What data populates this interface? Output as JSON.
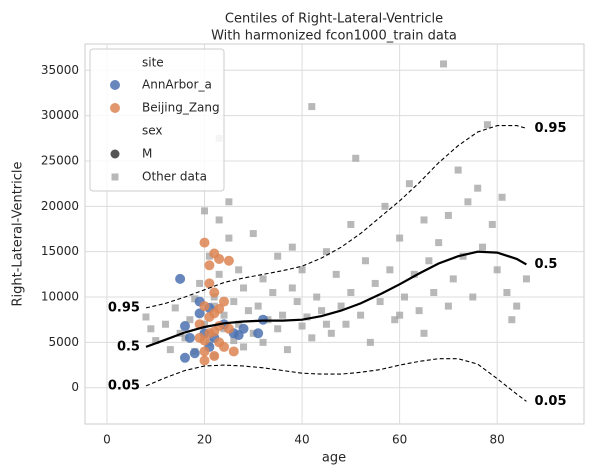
{
  "chart_data": {
    "type": "scatter",
    "title": "Centiles of Right-Lateral-Ventricle",
    "subtitle": "With harmonized fcon1000_train data",
    "x_label": "age",
    "y_label": "Right-Lateral-Ventricle",
    "xlim": [
      -4.5,
      97.8
    ],
    "ylim": [
      -4000,
      37900
    ],
    "xticks": [
      0,
      20,
      40,
      60,
      80
    ],
    "yticks": [
      0,
      5000,
      10000,
      15000,
      20000,
      25000,
      30000,
      35000
    ],
    "grid": true,
    "legend": {
      "position": "upper left",
      "site_title": "site",
      "sex_title": "sex",
      "sex_entries": [
        {
          "name": "M",
          "color": "#555555"
        }
      ]
    },
    "series": [
      {
        "name": "AnnArbor_a",
        "color": "#4c72b0",
        "marker": "circle",
        "x": [
          15,
          16,
          16,
          17,
          18,
          19,
          19,
          20,
          21,
          21,
          22,
          26,
          28,
          31,
          32,
          24,
          27
        ],
        "values": [
          12000,
          6800,
          3300,
          5500,
          3800,
          9500,
          8200,
          6000,
          4500,
          8800,
          5500,
          6000,
          6500,
          6000,
          7500,
          7000,
          5800
        ]
      },
      {
        "name": "Beijing_Zang",
        "color": "#dd8452",
        "marker": "circle",
        "x": [
          20,
          21,
          22,
          23,
          25,
          19,
          20,
          21,
          21,
          22,
          23,
          20,
          22,
          24,
          25,
          20,
          21,
          22,
          23,
          26,
          19,
          24,
          22,
          20,
          23
        ],
        "values": [
          16000,
          13500,
          14800,
          14200,
          14000,
          7000,
          9000,
          11500,
          6000,
          8200,
          5000,
          4000,
          3500,
          9500,
          6500,
          3000,
          7800,
          10500,
          6800,
          4000,
          5500,
          4500,
          6200,
          5200,
          8700
        ]
      },
      {
        "name": "Other data",
        "color": "#9a9a9a",
        "marker": "square",
        "x": [
          8,
          9,
          10,
          12,
          13,
          14,
          15,
          16,
          17,
          18,
          18,
          19,
          20,
          20,
          21,
          21,
          22,
          22,
          23,
          23,
          23,
          24,
          24,
          25,
          25,
          26,
          26,
          27,
          27,
          28,
          28,
          29,
          30,
          30,
          31,
          32,
          32,
          33,
          34,
          35,
          35,
          36,
          37,
          38,
          39,
          40,
          40,
          41,
          42,
          42,
          43,
          44,
          45,
          46,
          47,
          48,
          49,
          50,
          50,
          51,
          52,
          53,
          54,
          55,
          56,
          57,
          58,
          59,
          60,
          61,
          62,
          63,
          64,
          65,
          66,
          67,
          68,
          69,
          70,
          71,
          72,
          73,
          74,
          75,
          76,
          77,
          78,
          79,
          80,
          81,
          82,
          83,
          84,
          86,
          60,
          70,
          65,
          45,
          38,
          22
        ],
        "values": [
          7800,
          6500,
          5200,
          7000,
          4200,
          8800,
          6000,
          5500,
          7500,
          9800,
          4000,
          11500,
          19500,
          7000,
          14500,
          5000,
          10000,
          3500,
          12500,
          18500,
          27500,
          8000,
          6500,
          16500,
          20500,
          9500,
          5200,
          13000,
          7000,
          11000,
          4500,
          8500,
          17000,
          6000,
          9000,
          12000,
          5000,
          7500,
          10500,
          14500,
          6500,
          8000,
          4200,
          11000,
          9500,
          13000,
          6800,
          7800,
          31000,
          5500,
          10000,
          8500,
          15000,
          6000,
          12500,
          9000,
          7000,
          18000,
          10500,
          25300,
          8000,
          14000,
          5000,
          11500,
          9500,
          20000,
          13000,
          7500,
          16500,
          10000,
          22500,
          12500,
          8500,
          18500,
          14000,
          10500,
          16000,
          35700,
          19000,
          12000,
          24000,
          14500,
          20500,
          10000,
          22000,
          15500,
          29000,
          18000,
          13000,
          21000,
          10500,
          7500,
          9000,
          12000,
          8000,
          9000,
          6000,
          7000,
          15500,
          9000
        ]
      }
    ],
    "centiles": [
      {
        "name": "0.95",
        "color": "#000000",
        "dashed": true,
        "x": [
          8,
          12,
          16,
          20,
          24,
          28,
          32,
          36,
          40,
          44,
          48,
          52,
          56,
          60,
          64,
          68,
          72,
          76,
          80,
          84,
          86
        ],
        "values": [
          8800,
          9300,
          10000,
          10800,
          11600,
          12100,
          12500,
          12900,
          13400,
          14300,
          15500,
          17000,
          18800,
          20600,
          22600,
          24800,
          26700,
          28200,
          28900,
          28900,
          28600
        ]
      },
      {
        "name": "0.5",
        "color": "#000000",
        "dashed": false,
        "x": [
          8,
          12,
          16,
          20,
          24,
          28,
          32,
          36,
          40,
          44,
          48,
          52,
          56,
          60,
          64,
          68,
          72,
          76,
          80,
          84,
          86
        ],
        "values": [
          4500,
          5300,
          6100,
          6700,
          7100,
          7300,
          7400,
          7400,
          7500,
          7900,
          8500,
          9300,
          10300,
          11400,
          12600,
          13700,
          14500,
          15000,
          14900,
          14200,
          13600
        ]
      },
      {
        "name": "0.05",
        "color": "#000000",
        "dashed": true,
        "x": [
          8,
          12,
          16,
          20,
          24,
          28,
          32,
          36,
          40,
          44,
          48,
          52,
          56,
          60,
          64,
          68,
          72,
          76,
          80,
          84,
          86
        ],
        "values": [
          200,
          1100,
          1900,
          2400,
          2500,
          2400,
          2200,
          1900,
          1600,
          1500,
          1500,
          1700,
          2000,
          2500,
          2900,
          3200,
          3200,
          2600,
          1000,
          -700,
          -1500
        ]
      }
    ]
  }
}
